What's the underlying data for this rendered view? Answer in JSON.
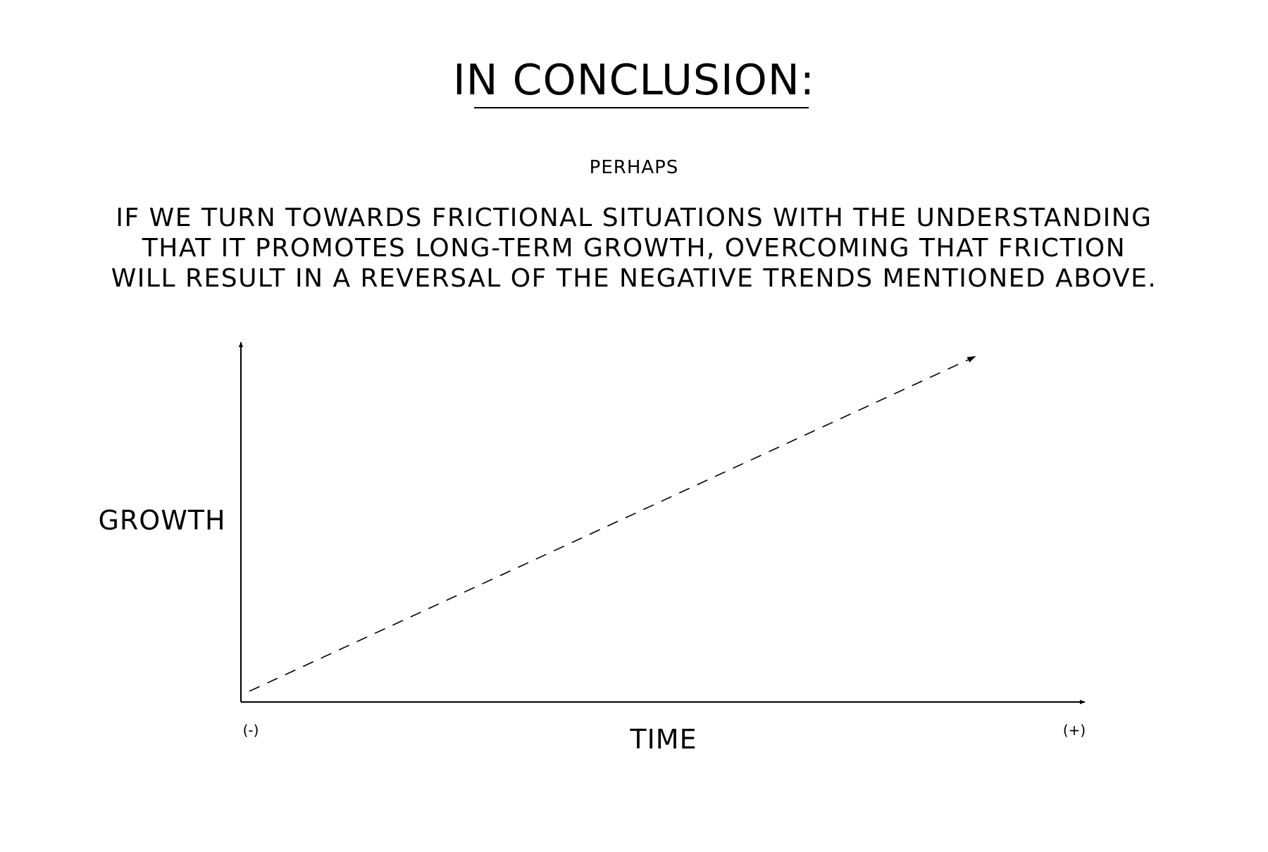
{
  "header": {
    "title": "IN CONCLUSION:",
    "subtitle": "PERHAPS",
    "statement_lines": [
      "IF WE TURN TOWARDS FRICTIONAL SITUATIONS WITH THE UNDERSTANDING",
      "THAT IT PROMOTES LONG-TERM GROWTH, OVERCOMING THAT FRICTION",
      "WILL RESULT IN A REVERSAL OF THE NEGATIVE TRENDS MENTIONED ABOVE."
    ]
  },
  "chart_data": {
    "type": "line",
    "title": "",
    "xlabel": "TIME",
    "ylabel": "GROWTH",
    "x_tick_labels": [
      "(-)",
      "(+)"
    ],
    "xlim": [
      0,
      1
    ],
    "ylim": [
      0,
      1
    ],
    "grid": false,
    "legend": "none",
    "line_style": "dashed",
    "arrowheads": true,
    "series": [
      {
        "x": [
          0.01,
          0.87
        ],
        "y": [
          0.03,
          0.96
        ]
      }
    ]
  }
}
